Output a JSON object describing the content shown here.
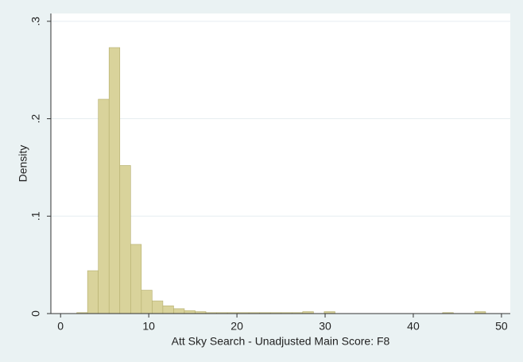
{
  "chart_data": {
    "type": "histogram",
    "x_label": "Att Sky Search - Unadjusted Main Score: F8",
    "y_label": "Density",
    "bins": [
      1.84,
      3.06,
      4.28,
      5.5,
      6.72,
      7.94,
      9.16,
      10.38,
      11.6,
      12.82,
      14.04,
      15.26,
      16.48,
      17.7,
      18.92,
      20.14,
      21.36,
      22.58,
      23.8,
      25.02,
      26.24,
      27.46,
      28.68,
      29.9,
      31.12,
      32.34,
      33.56,
      34.78,
      36.0,
      37.22,
      38.44,
      39.66,
      40.88,
      42.1,
      43.32,
      44.54,
      45.76,
      46.98,
      48.2,
      49.42
    ],
    "values": [
      0.001,
      0.044,
      0.22,
      0.273,
      0.152,
      0.071,
      0.024,
      0.013,
      0.008,
      0.005,
      0.003,
      0.002,
      0.001,
      0.001,
      0.001,
      0.001,
      0.001,
      0.001,
      0.001,
      0.001,
      0.001,
      0.002,
      0,
      0.002,
      0,
      0,
      0,
      0,
      0,
      0,
      0,
      0,
      0,
      0,
      0.001,
      0,
      0,
      0.002,
      0
    ],
    "color": "#d9d39b",
    "xlim": [
      -1.1,
      51
    ],
    "ylim": [
      0,
      0.308
    ],
    "xticks": [
      0,
      10,
      20,
      30,
      40,
      50
    ],
    "yticks": [
      0,
      {
        "value": 0.1,
        "label": ".1"
      },
      {
        "value": 0.2,
        "label": ".2"
      },
      {
        "value": 0.3,
        "label": ".3"
      }
    ],
    "grid": true
  }
}
